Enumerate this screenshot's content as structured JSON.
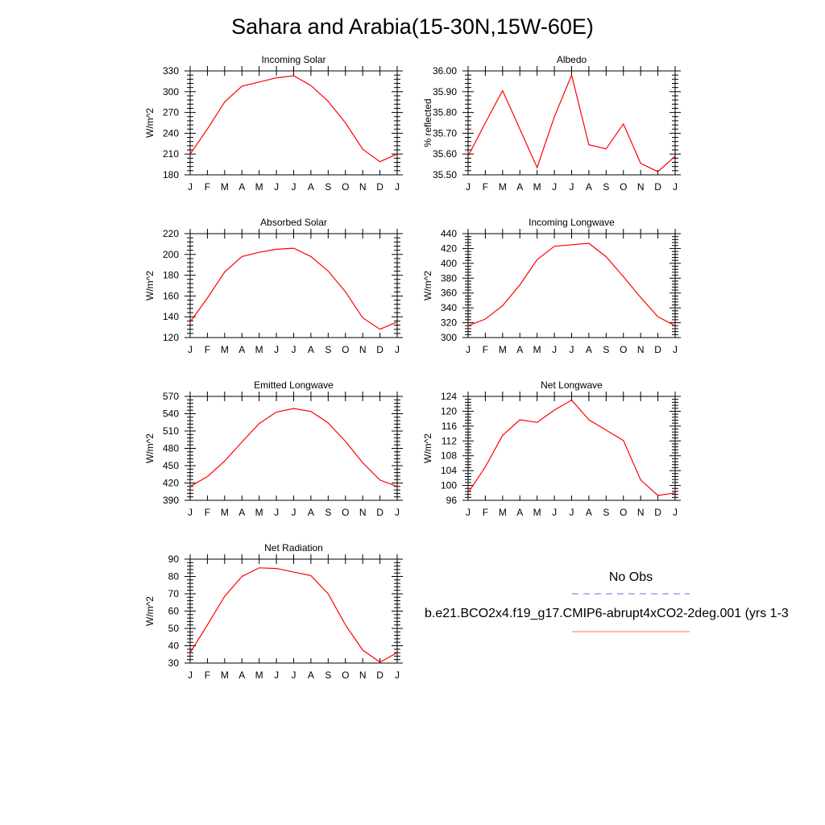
{
  "title": "Sahara and Arabia(15-30N,15W-60E)",
  "legend": {
    "entries": [
      {
        "label": "No Obs",
        "color": "#6f6fdb",
        "style": "dashed"
      },
      {
        "label": "b.e21.BCO2x4.f19_g17.CMIP6-abrupt4xCO2-2deg.001 (yrs 1-3",
        "color": "#ff6a6a",
        "style": "solid"
      }
    ]
  },
  "chart_data": [
    {
      "type": "line",
      "title": "Incoming Solar",
      "xlabel": "",
      "ylabel": "W/m^2",
      "categories": [
        "J",
        "F",
        "M",
        "A",
        "M",
        "J",
        "J",
        "A",
        "S",
        "O",
        "N",
        "D",
        "J"
      ],
      "ylim": [
        180,
        330
      ],
      "yticks": [
        "180",
        "210",
        "240",
        "270",
        "300",
        "330"
      ],
      "series": [
        {
          "color": "#ff0000",
          "values": [
            210,
            246,
            285,
            308,
            314,
            320,
            323,
            309,
            286,
            255,
            217,
            199,
            210
          ]
        }
      ]
    },
    {
      "type": "line",
      "title": "Albedo",
      "xlabel": "",
      "ylabel": "% reflected",
      "categories": [
        "J",
        "F",
        "M",
        "A",
        "M",
        "J",
        "J",
        "A",
        "S",
        "O",
        "N",
        "D",
        "J"
      ],
      "ylim": [
        35.5,
        36.0
      ],
      "yticks": [
        "35.50",
        "35.60",
        "35.70",
        "35.80",
        "35.90",
        "36.00"
      ],
      "series": [
        {
          "color": "#ff0000",
          "values": [
            35.59,
            35.75,
            35.905,
            35.72,
            35.535,
            35.78,
            35.98,
            35.645,
            35.625,
            35.745,
            35.555,
            35.515,
            35.59
          ]
        }
      ]
    },
    {
      "type": "line",
      "title": "Absorbed Solar",
      "xlabel": "",
      "ylabel": "W/m^2",
      "categories": [
        "J",
        "F",
        "M",
        "A",
        "M",
        "J",
        "J",
        "A",
        "S",
        "O",
        "N",
        "D",
        "J"
      ],
      "ylim": [
        120,
        220
      ],
      "yticks": [
        "120",
        "140",
        "160",
        "180",
        "200",
        "220"
      ],
      "series": [
        {
          "color": "#ff0000",
          "values": [
            135,
            158,
            183,
            198,
            202,
            205,
            206,
            198,
            184,
            164,
            139,
            128,
            135
          ]
        }
      ]
    },
    {
      "type": "line",
      "title": "Incoming Longwave",
      "xlabel": "",
      "ylabel": "W/m^2",
      "categories": [
        "J",
        "F",
        "M",
        "A",
        "M",
        "J",
        "J",
        "A",
        "S",
        "O",
        "N",
        "D",
        "J"
      ],
      "ylim": [
        300,
        440
      ],
      "yticks": [
        "300",
        "320",
        "340",
        "360",
        "380",
        "400",
        "420",
        "440"
      ],
      "series": [
        {
          "color": "#ff0000",
          "values": [
            316,
            325,
            343,
            371,
            405,
            423,
            425,
            427,
            409,
            382,
            354,
            328,
            316
          ]
        }
      ]
    },
    {
      "type": "line",
      "title": "Emitted Longwave",
      "xlabel": "",
      "ylabel": "W/m^2",
      "categories": [
        "J",
        "F",
        "M",
        "A",
        "M",
        "J",
        "J",
        "A",
        "S",
        "O",
        "N",
        "D",
        "J"
      ],
      "ylim": [
        390,
        570
      ],
      "yticks": [
        "390",
        "420",
        "450",
        "480",
        "510",
        "540",
        "570"
      ],
      "series": [
        {
          "color": "#ff0000",
          "values": [
            414,
            431,
            458,
            491,
            523,
            543,
            549,
            544,
            524,
            492,
            455,
            425,
            414
          ]
        }
      ]
    },
    {
      "type": "line",
      "title": "Net Longwave",
      "xlabel": "",
      "ylabel": "W/m^2",
      "categories": [
        "J",
        "F",
        "M",
        "A",
        "M",
        "J",
        "J",
        "A",
        "S",
        "O",
        "N",
        "D",
        "J"
      ],
      "ylim": [
        96,
        124
      ],
      "yticks": [
        "96",
        "100",
        "104",
        "108",
        "112",
        "116",
        "120",
        "124"
      ],
      "series": [
        {
          "color": "#ff0000",
          "values": [
            98,
            105,
            113.5,
            117.7,
            117,
            120.3,
            123,
            117.7,
            114.9,
            112.1,
            101.5,
            97.3,
            98
          ]
        }
      ]
    },
    {
      "type": "line",
      "title": "Net Radiation",
      "xlabel": "",
      "ylabel": "W/m^2",
      "categories": [
        "J",
        "F",
        "M",
        "A",
        "M",
        "J",
        "J",
        "A",
        "S",
        "O",
        "N",
        "D",
        "J"
      ],
      "ylim": [
        30,
        90
      ],
      "yticks": [
        "30",
        "40",
        "50",
        "60",
        "70",
        "80",
        "90"
      ],
      "series": [
        {
          "color": "#ff0000",
          "values": [
            36,
            52,
            68.5,
            80,
            85,
            84.6,
            82.5,
            80.5,
            70,
            52,
            37.5,
            30.5,
            36
          ]
        }
      ]
    }
  ]
}
